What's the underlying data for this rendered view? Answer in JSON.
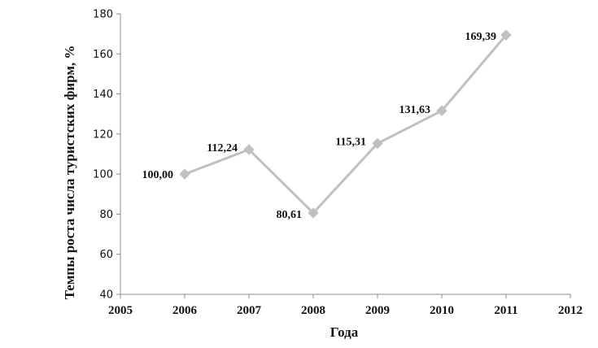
{
  "chart_data": {
    "type": "line",
    "xlabel": "Года",
    "ylabel": "Темпы роста числа туристских фирм, %",
    "xlim": [
      2005,
      2012
    ],
    "ylim": [
      40,
      180
    ],
    "x_ticks": [
      "2005",
      "2006",
      "2007",
      "2008",
      "2009",
      "2010",
      "2011",
      "2012"
    ],
    "y_ticks": [
      "40",
      "60",
      "80",
      "100",
      "120",
      "140",
      "160",
      "180"
    ],
    "grid": false,
    "legend": "none",
    "series": [
      {
        "color": "#c0c0c0",
        "marker": "diamond",
        "points": [
          {
            "x": 2006,
            "y": 100.0,
            "label": "100,00"
          },
          {
            "x": 2007,
            "y": 112.24,
            "label": "112,24"
          },
          {
            "x": 2008,
            "y": 80.61,
            "label": "80,61"
          },
          {
            "x": 2009,
            "y": 115.31,
            "label": "115,31"
          },
          {
            "x": 2010,
            "y": 131.63,
            "label": "131,63"
          },
          {
            "x": 2011,
            "y": 169.39,
            "label": "169,39"
          }
        ]
      }
    ]
  }
}
